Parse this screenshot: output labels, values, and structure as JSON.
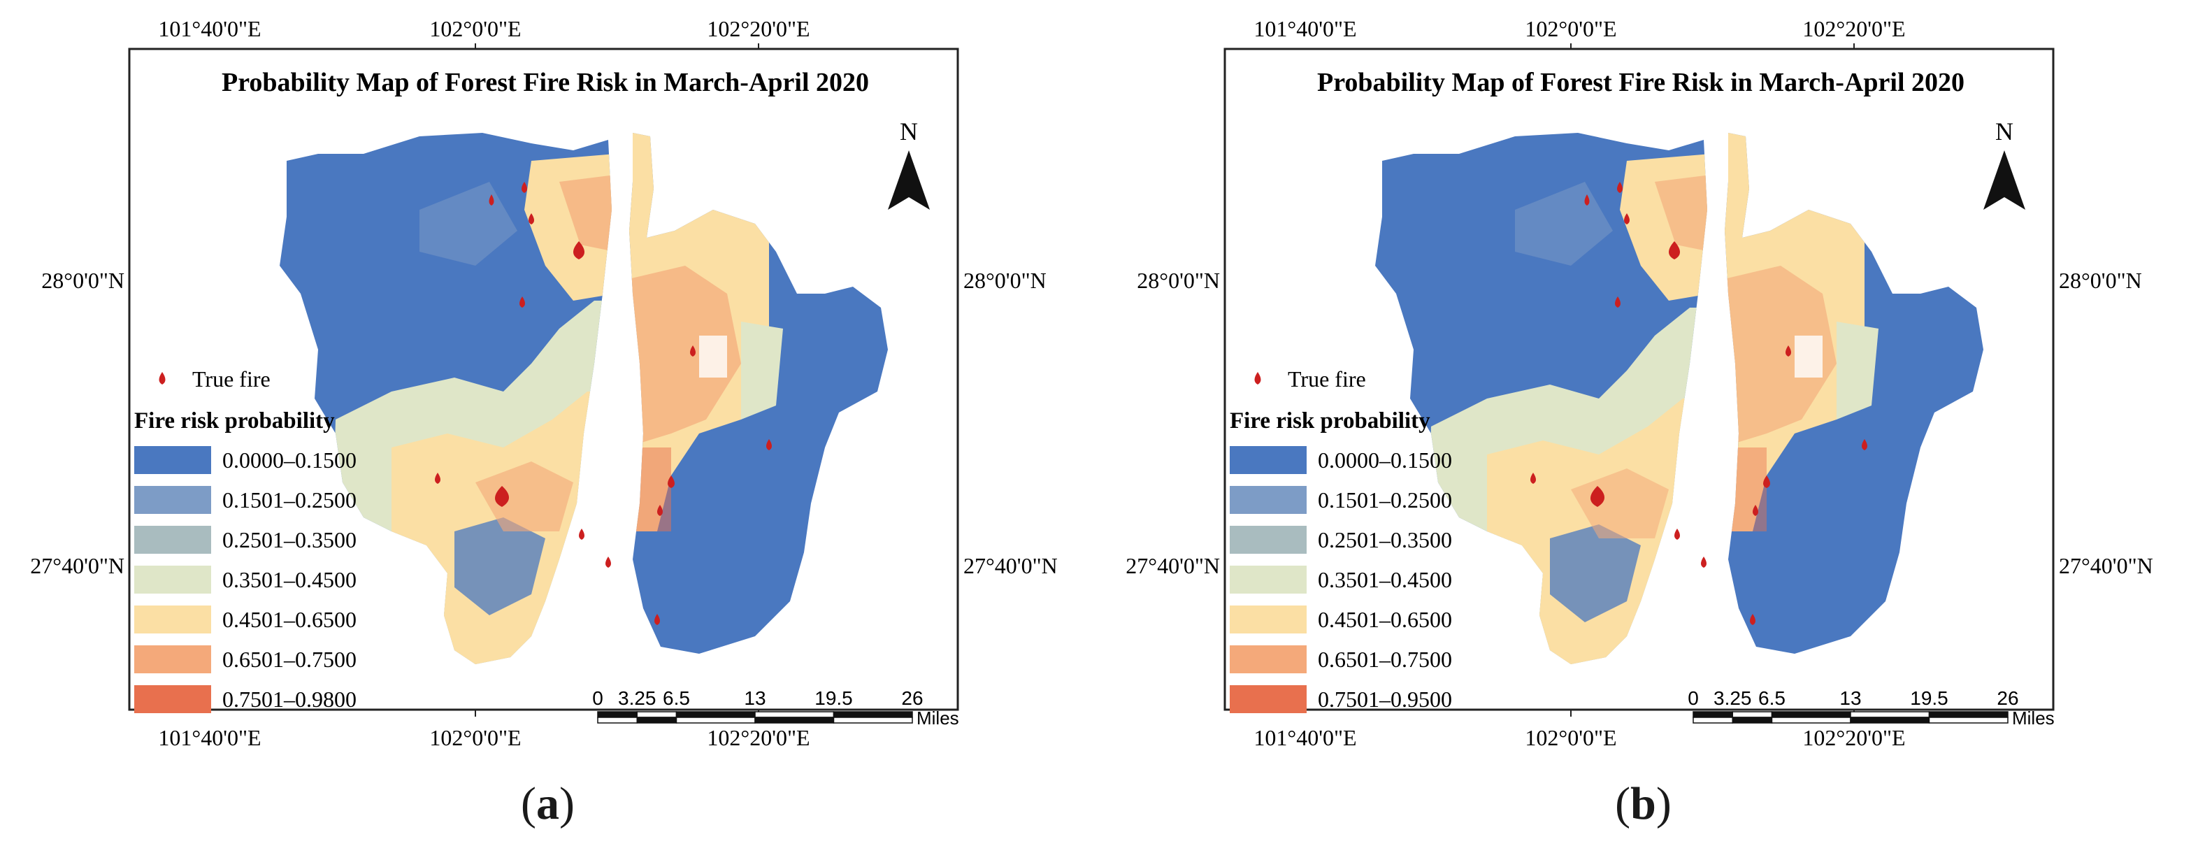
{
  "panels": [
    {
      "id": "a",
      "caption_open": "(",
      "caption_letter": "a",
      "caption_close": ")",
      "title": "Probability Map of Forest Fire Risk in March-April 2020",
      "north_label": "N",
      "top_lon_labels": [
        "101°40'0\"E",
        "102°0'0\"E",
        "102°20'0\"E"
      ],
      "bottom_lon_labels": [
        "101°40'0\"E",
        "102°0'0\"E",
        "102°20'0\"E"
      ],
      "left_lat_labels": [
        "28°0'0\"N",
        "27°40'0\"N"
      ],
      "right_lat_labels": [
        "28°0'0\"N",
        "27°40'0\"N"
      ],
      "legend_fire": "True fire",
      "legend_title": "Fire risk probability",
      "classes": [
        {
          "label": "0.0000–0.1500",
          "color": "#4a78c0"
        },
        {
          "label": "0.1501–0.2500",
          "color": "#7d9cc6"
        },
        {
          "label": "0.2501–0.3500",
          "color": "#a9bcbf"
        },
        {
          "label": "0.3501–0.4500",
          "color": "#dfe6c8"
        },
        {
          "label": "0.4501–0.6500",
          "color": "#fbdfa4"
        },
        {
          "label": "0.6501–0.7500",
          "color": "#f4a97a"
        },
        {
          "label": "0.7501–0.9800",
          "color": "#e8704e"
        }
      ],
      "scale_ticks": [
        "0",
        "3.25",
        "6.5",
        "13",
        "19.5",
        "26"
      ],
      "scale_unit": "Miles"
    },
    {
      "id": "b",
      "caption_open": "(",
      "caption_letter": "b",
      "caption_close": ")",
      "title": "Probability Map of Forest Fire Risk in March-April 2020",
      "north_label": "N",
      "top_lon_labels": [
        "101°40'0\"E",
        "102°0'0\"E",
        "102°20'0\"E"
      ],
      "bottom_lon_labels": [
        "101°40'0\"E",
        "102°0'0\"E",
        "102°20'0\"E"
      ],
      "left_lat_labels": [
        "28°0'0\"N",
        "27°40'0\"N"
      ],
      "right_lat_labels": [
        "28°0'0\"N",
        "27°40'0\"N"
      ],
      "legend_fire": "True fire",
      "legend_title": "Fire risk probability",
      "classes": [
        {
          "label": "0.0000–0.1500",
          "color": "#4a78c0"
        },
        {
          "label": "0.1501–0.2500",
          "color": "#7d9cc6"
        },
        {
          "label": "0.2501–0.3500",
          "color": "#a9bcbf"
        },
        {
          "label": "0.3501–0.4500",
          "color": "#dfe6c8"
        },
        {
          "label": "0.4501–0.6500",
          "color": "#fbdfa4"
        },
        {
          "label": "0.6501–0.7500",
          "color": "#f4a97a"
        },
        {
          "label": "0.7501–0.9500",
          "color": "#e8704e"
        }
      ],
      "scale_ticks": [
        "0",
        "3.25",
        "6.5",
        "13",
        "19.5",
        "26"
      ],
      "scale_unit": "Miles"
    }
  ],
  "colors": {
    "fire_marker": "#cc1f1f",
    "frame": "#222222"
  }
}
